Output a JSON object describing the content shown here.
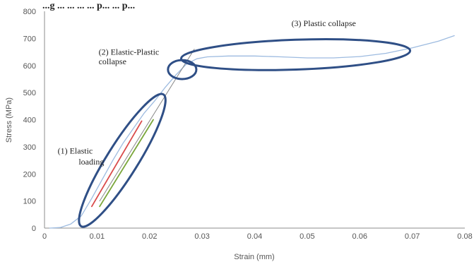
{
  "chart_data": {
    "type": "line",
    "title": "",
    "title_fragment": "...g ... ... ... ... p... ... p...",
    "xlabel": "Strain (mm)",
    "ylabel": "Stress (MPa)",
    "xlim": [
      0,
      0.08
    ],
    "ylim": [
      0,
      800
    ],
    "x_ticks": [
      "0",
      "0.01",
      "0.02",
      "0.03",
      "0.04",
      "0.05",
      "0.06",
      "0.07",
      "0.08"
    ],
    "y_ticks": [
      "0",
      "100",
      "200",
      "300",
      "400",
      "500",
      "600",
      "700",
      "800"
    ],
    "grid": false,
    "legend": "none",
    "series": [
      {
        "color": "#9dbbe0",
        "points": [
          [
            0.001,
            0
          ],
          [
            0.003,
            2
          ],
          [
            0.005,
            15
          ],
          [
            0.007,
            45
          ],
          [
            0.009,
            110
          ],
          [
            0.011,
            180
          ],
          [
            0.013,
            250
          ],
          [
            0.015,
            315
          ],
          [
            0.017,
            370
          ],
          [
            0.019,
            425
          ],
          [
            0.021,
            470
          ],
          [
            0.023,
            520
          ],
          [
            0.025,
            565
          ],
          [
            0.027,
            605
          ],
          [
            0.029,
            625
          ],
          [
            0.031,
            632
          ],
          [
            0.035,
            635
          ],
          [
            0.04,
            635
          ],
          [
            0.045,
            632
          ],
          [
            0.05,
            628
          ],
          [
            0.055,
            628
          ],
          [
            0.06,
            633
          ],
          [
            0.065,
            645
          ],
          [
            0.07,
            665
          ],
          [
            0.075,
            690
          ],
          [
            0.078,
            710
          ]
        ]
      },
      {
        "color": "#888888",
        "points": [
          [
            0.0105,
            100
          ],
          [
            0.0285,
            660
          ]
        ]
      },
      {
        "color": "#d94b4b",
        "points": [
          [
            0.009,
            80
          ],
          [
            0.0185,
            395
          ]
        ]
      },
      {
        "color": "#7aa63a",
        "points": [
          [
            0.0105,
            80
          ],
          [
            0.0207,
            400
          ]
        ]
      }
    ],
    "ellipses": [
      {
        "cx": 0.0148,
        "cy": 250,
        "rx": 0.0035,
        "ry": 210,
        "angle": -58
      },
      {
        "cx": 0.0262,
        "cy": 585,
        "rx": 0.0027,
        "ry": 35,
        "angle": 0
      },
      {
        "cx": 0.0478,
        "cy": 640,
        "rx": 0.0218,
        "ry": 55,
        "angle": -2
      }
    ],
    "annotations": [
      {
        "label": "(1)  Elastic",
        "x": 0.0025,
        "y": 275
      },
      {
        "label": "loading",
        "x": 0.0065,
        "y": 235
      },
      {
        "label": "(2) Elastic-Plastic",
        "x": 0.0103,
        "y": 640
      },
      {
        "label": "collapse",
        "x": 0.0103,
        "y": 605
      },
      {
        "label": "(3) Plastic collapse",
        "x": 0.047,
        "y": 745
      }
    ]
  }
}
